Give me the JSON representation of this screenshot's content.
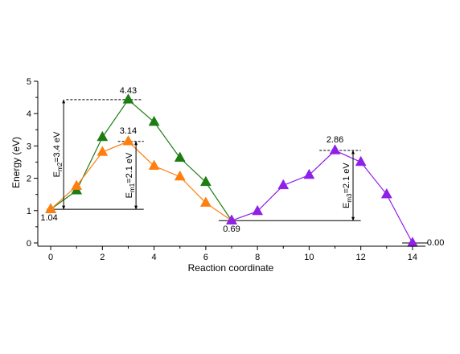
{
  "chart_data": {
    "type": "line",
    "title": "",
    "xlabel": "Reaction coordinate",
    "ylabel": "Energy (eV)",
    "xlim": [
      -0.5,
      14.5
    ],
    "ylim": [
      -0.1,
      5.0
    ],
    "xticks": [
      0,
      2,
      4,
      6,
      8,
      10,
      12,
      14
    ],
    "yticks": [
      0,
      1,
      2,
      3,
      4,
      5
    ],
    "grid": false,
    "legend": "none",
    "series": [
      {
        "color": "#1b7d12",
        "marker": "triangle",
        "x": [
          0,
          1,
          2,
          3,
          4,
          5,
          6,
          7
        ],
        "y": [
          1.04,
          1.62,
          3.27,
          4.43,
          3.74,
          2.63,
          1.88,
          0.69
        ]
      },
      {
        "color": "#ff7f0e",
        "marker": "triangle",
        "x": [
          0,
          1,
          2,
          3,
          4,
          5,
          6,
          7
        ],
        "y": [
          1.04,
          1.76,
          2.81,
          3.14,
          2.38,
          2.05,
          1.24,
          0.69
        ]
      },
      {
        "color": "#8f20ea",
        "marker": "triangle",
        "x": [
          7,
          8,
          9,
          10,
          11,
          12,
          13,
          14
        ],
        "y": [
          0.69,
          0.98,
          1.78,
          2.1,
          2.86,
          2.5,
          1.5,
          0.0
        ]
      }
    ],
    "annotations": {
      "points": [
        {
          "text": "1.04",
          "x": 0,
          "y": 1.04
        },
        {
          "text": "4.43",
          "x": 3,
          "y": 4.43
        },
        {
          "text": "3.14",
          "x": 3,
          "y": 3.14
        },
        {
          "text": "0.69",
          "x": 7,
          "y": 0.69
        },
        {
          "text": "2.86",
          "x": 11,
          "y": 2.86
        },
        {
          "text": "0.00",
          "x": 14,
          "y": 0.0
        }
      ],
      "barriers": [
        {
          "main": "E",
          "sub": "m2",
          "rest": "=3.4 eV",
          "x": 0.5,
          "y_low": 1.04,
          "y_high": 4.43
        },
        {
          "main": "E",
          "sub": "m1",
          "rest": "=2.1 eV",
          "x": 3.3,
          "y_low": 1.04,
          "y_high": 3.14
        },
        {
          "main": "E",
          "sub": "m3",
          "rest": "=2.1 eV",
          "x": 11.7,
          "y_low": 0.69,
          "y_high": 2.86
        }
      ]
    }
  }
}
